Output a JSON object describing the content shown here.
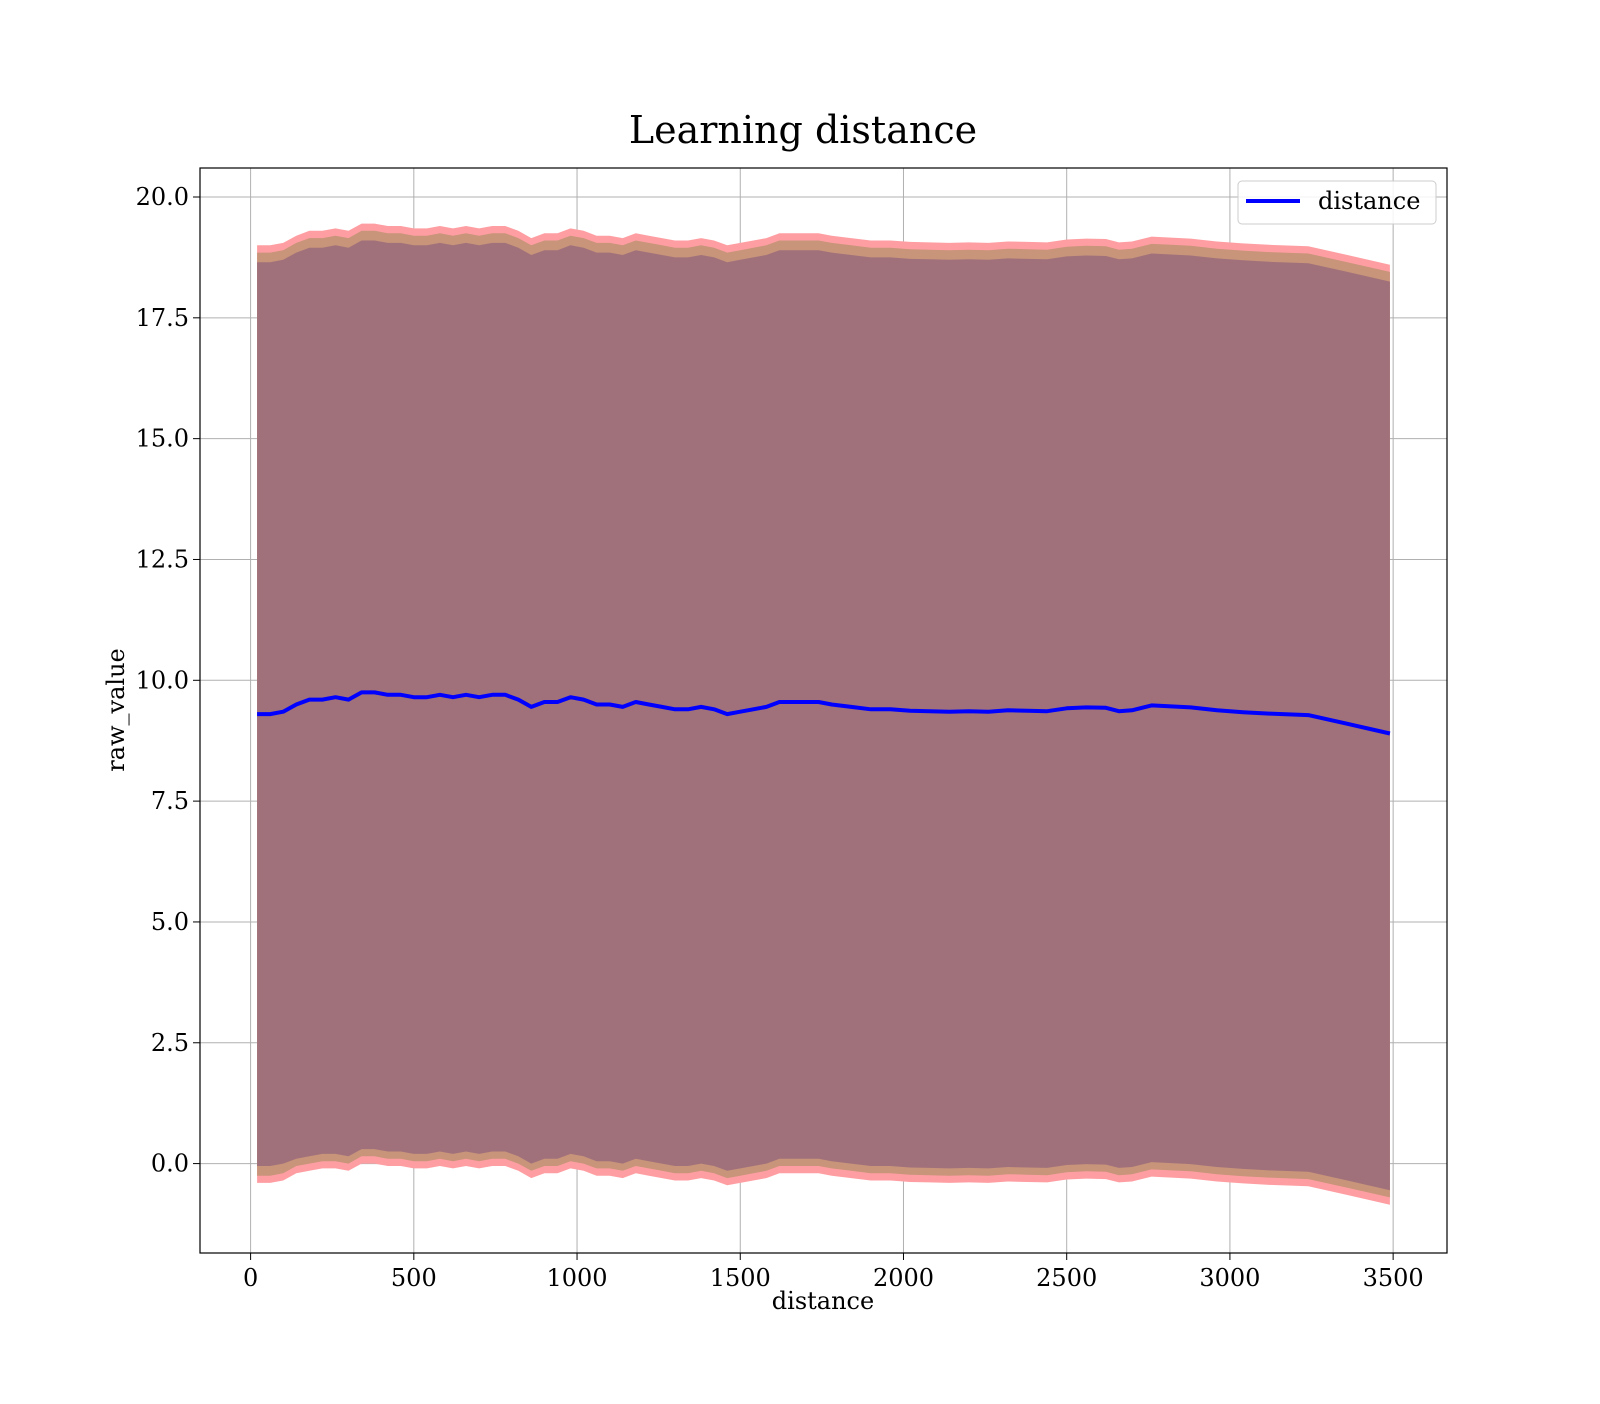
{
  "chart_data": {
    "type": "line",
    "title": "Learning distance",
    "xlabel": "distance",
    "ylabel": "raw_value",
    "xlim": [
      -155,
      3665
    ],
    "ylim": [
      -1.85,
      20.6
    ],
    "xticks": [
      0,
      500,
      1000,
      1500,
      2000,
      2500,
      3000,
      3500
    ],
    "yticks": [
      0.0,
      2.5,
      5.0,
      7.5,
      10.0,
      12.5,
      15.0,
      17.5,
      20.0
    ],
    "grid": true,
    "legend": {
      "position": "top-right",
      "entries": [
        "distance"
      ]
    },
    "colors": {
      "line": "#0000ff",
      "outer_band": "#ff9ea2",
      "middle_band": "#c8947a",
      "inner_band": "#a0717a",
      "grid": "#b0b0b0"
    },
    "x": [
      20,
      60,
      100,
      140,
      180,
      220,
      260,
      300,
      340,
      380,
      420,
      460,
      500,
      540,
      580,
      620,
      660,
      700,
      740,
      780,
      820,
      860,
      900,
      940,
      980,
      1020,
      1060,
      1100,
      1140,
      1180,
      1220,
      1260,
      1300,
      1340,
      1380,
      1420,
      1460,
      1500,
      1540,
      1580,
      1620,
      1660,
      1700,
      1740,
      1780,
      1840,
      1900,
      1960,
      2020,
      2080,
      2140,
      2200,
      2260,
      2320,
      2380,
      2440,
      2500,
      2560,
      2620,
      2660,
      2700,
      2760,
      2820,
      2880,
      2960,
      3040,
      3120,
      3240,
      3360,
      3490
    ],
    "series": [
      {
        "name": "distance",
        "values": [
          9.3,
          9.3,
          9.35,
          9.5,
          9.6,
          9.6,
          9.65,
          9.6,
          9.75,
          9.75,
          9.7,
          9.7,
          9.65,
          9.65,
          9.7,
          9.65,
          9.7,
          9.65,
          9.7,
          9.7,
          9.6,
          9.45,
          9.55,
          9.55,
          9.65,
          9.6,
          9.5,
          9.5,
          9.45,
          9.55,
          9.5,
          9.45,
          9.4,
          9.4,
          9.45,
          9.4,
          9.3,
          9.35,
          9.4,
          9.45,
          9.55,
          9.55,
          9.55,
          9.55,
          9.5,
          9.45,
          9.4,
          9.4,
          9.37,
          9.36,
          9.35,
          9.36,
          9.35,
          9.38,
          9.37,
          9.36,
          9.42,
          9.44,
          9.43,
          9.36,
          9.38,
          9.48,
          9.46,
          9.44,
          9.38,
          9.34,
          9.31,
          9.28,
          9.1,
          8.9
        ]
      }
    ],
    "band_inner": {
      "lower": [
        -0.05,
        -0.05,
        0.0,
        0.1,
        0.15,
        0.2,
        0.2,
        0.15,
        0.3,
        0.3,
        0.25,
        0.25,
        0.2,
        0.2,
        0.25,
        0.2,
        0.25,
        0.2,
        0.25,
        0.25,
        0.15,
        0.0,
        0.1,
        0.1,
        0.2,
        0.15,
        0.05,
        0.05,
        0.0,
        0.1,
        0.05,
        0.0,
        -0.05,
        -0.05,
        0.0,
        -0.05,
        -0.15,
        -0.1,
        -0.05,
        0.0,
        0.1,
        0.1,
        0.1,
        0.1,
        0.05,
        0.0,
        -0.05,
        -0.05,
        -0.08,
        -0.09,
        -0.1,
        -0.09,
        -0.1,
        -0.07,
        -0.08,
        -0.09,
        -0.03,
        -0.01,
        -0.02,
        -0.09,
        -0.07,
        0.03,
        0.01,
        -0.01,
        -0.07,
        -0.11,
        -0.14,
        -0.17,
        -0.35,
        -0.55
      ],
      "upper": [
        18.65,
        18.65,
        18.7,
        18.85,
        18.95,
        18.95,
        19.0,
        18.95,
        19.1,
        19.1,
        19.05,
        19.05,
        19.0,
        19.0,
        19.05,
        19.0,
        19.05,
        19.0,
        19.05,
        19.05,
        18.95,
        18.8,
        18.9,
        18.9,
        19.0,
        18.95,
        18.85,
        18.85,
        18.8,
        18.9,
        18.85,
        18.8,
        18.75,
        18.75,
        18.8,
        18.75,
        18.65,
        18.7,
        18.75,
        18.8,
        18.9,
        18.9,
        18.9,
        18.9,
        18.85,
        18.8,
        18.75,
        18.75,
        18.72,
        18.71,
        18.7,
        18.71,
        18.7,
        18.73,
        18.72,
        18.71,
        18.77,
        18.79,
        18.78,
        18.71,
        18.73,
        18.83,
        18.81,
        18.79,
        18.73,
        18.69,
        18.66,
        18.63,
        18.45,
        18.25
      ]
    },
    "band_middle": {
      "lower": [
        -0.25,
        -0.25,
        -0.2,
        -0.05,
        0.0,
        0.05,
        0.05,
        0.0,
        0.15,
        0.15,
        0.1,
        0.1,
        0.05,
        0.05,
        0.1,
        0.05,
        0.1,
        0.05,
        0.1,
        0.1,
        0.0,
        -0.15,
        -0.05,
        -0.05,
        0.05,
        0.0,
        -0.1,
        -0.1,
        -0.15,
        -0.05,
        -0.1,
        -0.15,
        -0.2,
        -0.2,
        -0.15,
        -0.2,
        -0.3,
        -0.25,
        -0.2,
        -0.15,
        -0.05,
        -0.05,
        -0.05,
        -0.05,
        -0.1,
        -0.15,
        -0.2,
        -0.2,
        -0.23,
        -0.24,
        -0.25,
        -0.24,
        -0.25,
        -0.22,
        -0.23,
        -0.24,
        -0.18,
        -0.16,
        -0.17,
        -0.24,
        -0.22,
        -0.12,
        -0.14,
        -0.16,
        -0.22,
        -0.26,
        -0.29,
        -0.32,
        -0.5,
        -0.7
      ],
      "upper": [
        18.85,
        18.85,
        18.9,
        19.05,
        19.15,
        19.15,
        19.2,
        19.15,
        19.3,
        19.3,
        19.25,
        19.25,
        19.2,
        19.2,
        19.25,
        19.2,
        19.25,
        19.2,
        19.25,
        19.25,
        19.15,
        19.0,
        19.1,
        19.1,
        19.2,
        19.15,
        19.05,
        19.05,
        19.0,
        19.1,
        19.05,
        19.0,
        18.95,
        18.95,
        19.0,
        18.95,
        18.85,
        18.9,
        18.95,
        19.0,
        19.1,
        19.1,
        19.1,
        19.1,
        19.05,
        19.0,
        18.95,
        18.95,
        18.92,
        18.91,
        18.9,
        18.91,
        18.9,
        18.93,
        18.92,
        18.91,
        18.97,
        18.99,
        18.98,
        18.91,
        18.93,
        19.03,
        19.01,
        18.99,
        18.93,
        18.89,
        18.86,
        18.83,
        18.65,
        18.45
      ]
    },
    "band_outer": {
      "lower": [
        -0.4,
        -0.4,
        -0.35,
        -0.2,
        -0.15,
        -0.1,
        -0.1,
        -0.15,
        0.0,
        0.0,
        -0.05,
        -0.05,
        -0.1,
        -0.1,
        -0.05,
        -0.1,
        -0.05,
        -0.1,
        -0.05,
        -0.05,
        -0.15,
        -0.3,
        -0.2,
        -0.2,
        -0.1,
        -0.15,
        -0.25,
        -0.25,
        -0.3,
        -0.2,
        -0.25,
        -0.3,
        -0.35,
        -0.35,
        -0.3,
        -0.35,
        -0.45,
        -0.4,
        -0.35,
        -0.3,
        -0.2,
        -0.2,
        -0.2,
        -0.2,
        -0.25,
        -0.3,
        -0.35,
        -0.35,
        -0.38,
        -0.39,
        -0.4,
        -0.39,
        -0.4,
        -0.37,
        -0.38,
        -0.39,
        -0.33,
        -0.31,
        -0.32,
        -0.39,
        -0.37,
        -0.27,
        -0.29,
        -0.31,
        -0.37,
        -0.41,
        -0.44,
        -0.47,
        -0.65,
        -0.85
      ],
      "upper": [
        19.0,
        19.0,
        19.05,
        19.2,
        19.3,
        19.3,
        19.35,
        19.3,
        19.45,
        19.45,
        19.4,
        19.4,
        19.35,
        19.35,
        19.4,
        19.35,
        19.4,
        19.35,
        19.4,
        19.4,
        19.3,
        19.15,
        19.25,
        19.25,
        19.35,
        19.3,
        19.2,
        19.2,
        19.15,
        19.25,
        19.2,
        19.15,
        19.1,
        19.1,
        19.15,
        19.1,
        19.0,
        19.05,
        19.1,
        19.15,
        19.25,
        19.25,
        19.25,
        19.25,
        19.2,
        19.15,
        19.1,
        19.1,
        19.07,
        19.06,
        19.05,
        19.06,
        19.05,
        19.08,
        19.07,
        19.06,
        19.12,
        19.14,
        19.13,
        19.06,
        19.08,
        19.18,
        19.16,
        19.14,
        19.08,
        19.04,
        19.01,
        18.98,
        18.8,
        18.6
      ]
    }
  }
}
